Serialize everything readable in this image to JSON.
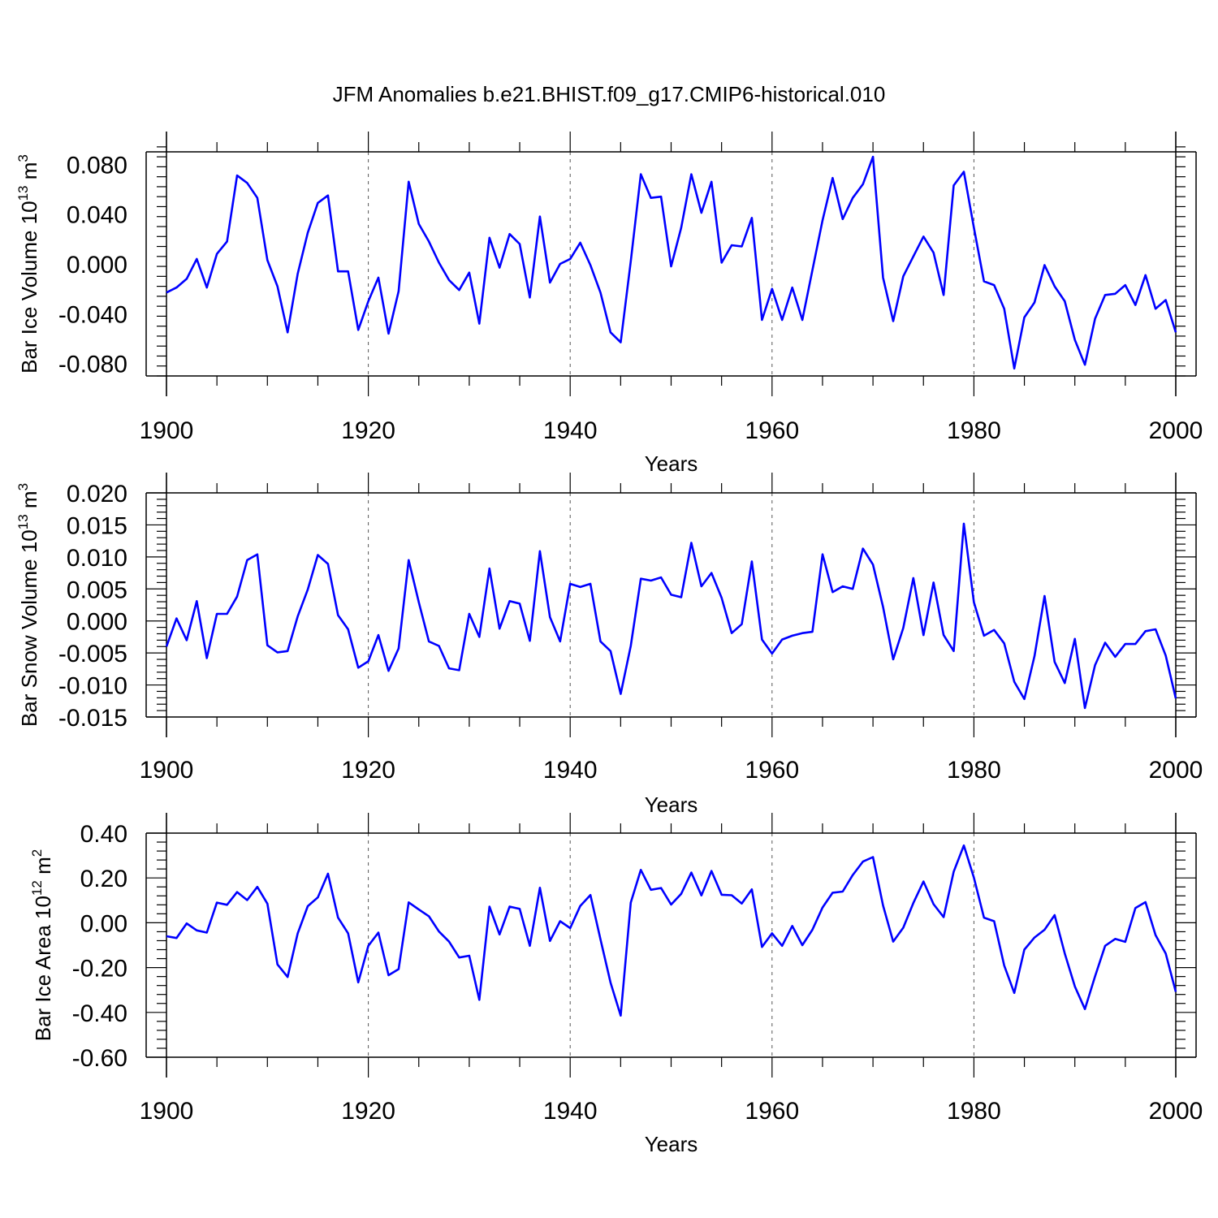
{
  "title": "JFM Anomalies b.e21.BHIST.f09_g17.CMIP6-historical.010",
  "colors": {
    "line": "#0000ff",
    "axis": "#000000",
    "grid": "#555555"
  },
  "chart_data": [
    {
      "type": "line",
      "ylabel_main": "Bar Ice Volume 10",
      "ylabel_exp": "13",
      "ylabel_unit": "m",
      "ylabel_unit_exp": "3",
      "xlabel": "Years",
      "xlim": [
        1900,
        2000
      ],
      "ylim": [
        -0.09,
        0.09
      ],
      "yticks": [
        -0.08,
        -0.04,
        0.0,
        0.04,
        0.08
      ],
      "ytick_labels": [
        "-0.080",
        "-0.040",
        "0.000",
        "0.040",
        "0.080"
      ],
      "y_minor_step": 0.008,
      "xticks": [
        1900,
        1920,
        1940,
        1960,
        1980,
        2000
      ],
      "xtick_labels": [
        "1900",
        "1920",
        "1940",
        "1960",
        "1980",
        "2000"
      ],
      "x_minor_step": 5,
      "grid_x": [
        1920,
        1940,
        1960,
        1980
      ],
      "x_start": 1900,
      "values": [
        -0.023,
        -0.019,
        -0.012,
        0.004,
        -0.019,
        0.008,
        0.018,
        0.071,
        0.065,
        0.053,
        0.003,
        -0.018,
        -0.055,
        -0.008,
        0.025,
        0.049,
        0.055,
        -0.006,
        -0.006,
        -0.053,
        -0.03,
        -0.011,
        -0.056,
        -0.022,
        0.066,
        0.032,
        0.018,
        0.001,
        -0.013,
        -0.021,
        -0.007,
        -0.048,
        0.021,
        -0.003,
        0.024,
        0.016,
        -0.027,
        0.038,
        -0.015,
        0.0,
        0.004,
        0.017,
        -0.001,
        -0.023,
        -0.055,
        -0.063,
        0.002,
        0.072,
        0.053,
        0.054,
        -0.002,
        0.029,
        0.072,
        0.041,
        0.066,
        0.001,
        0.015,
        0.014,
        0.037,
        -0.045,
        -0.02,
        -0.045,
        -0.019,
        -0.045,
        -0.005,
        0.035,
        0.069,
        0.036,
        0.053,
        0.064,
        0.086,
        -0.011,
        -0.046,
        -0.01,
        0.006,
        0.022,
        0.009,
        -0.025,
        0.063,
        0.074,
        0.029,
        -0.014,
        -0.017,
        -0.036,
        -0.084,
        -0.043,
        -0.031,
        -0.001,
        -0.018,
        -0.03,
        -0.061,
        -0.081,
        -0.044,
        -0.025,
        -0.024,
        -0.017,
        -0.033,
        -0.009,
        -0.036,
        -0.029,
        -0.055
      ]
    },
    {
      "type": "line",
      "ylabel_main": "Bar Snow Volume 10",
      "ylabel_exp": "13",
      "ylabel_unit": "m",
      "ylabel_unit_exp": "3",
      "xlabel": "Years",
      "xlim": [
        1900,
        2000
      ],
      "ylim": [
        -0.015,
        0.02
      ],
      "yticks": [
        -0.015,
        -0.01,
        -0.005,
        0.0,
        0.005,
        0.01,
        0.015,
        0.02
      ],
      "ytick_labels": [
        "-0.015",
        "-0.010",
        "-0.005",
        "0.000",
        "0.005",
        "0.010",
        "0.015",
        "0.020"
      ],
      "y_minor_step": 0.001,
      "xticks": [
        1900,
        1920,
        1940,
        1960,
        1980,
        2000
      ],
      "xtick_labels": [
        "1900",
        "1920",
        "1940",
        "1960",
        "1980",
        "2000"
      ],
      "x_minor_step": 5,
      "grid_x": [
        1920,
        1940,
        1960,
        1980
      ],
      "x_start": 1900,
      "values": [
        -0.004,
        0.0004,
        -0.003,
        0.0031,
        -0.0058,
        0.0011,
        0.0011,
        0.0038,
        0.0095,
        0.0104,
        -0.0038,
        -0.0049,
        -0.0047,
        0.0007,
        0.0049,
        0.0103,
        0.0089,
        0.0009,
        -0.0013,
        -0.0073,
        -0.0063,
        -0.0022,
        -0.0078,
        -0.0043,
        0.0095,
        0.0029,
        -0.0032,
        -0.0039,
        -0.0074,
        -0.0077,
        0.0011,
        -0.0025,
        0.0082,
        -0.0012,
        0.0031,
        0.0027,
        -0.0031,
        0.0109,
        0.0006,
        -0.0032,
        0.0058,
        0.0053,
        0.0058,
        -0.0032,
        -0.0047,
        -0.0114,
        -0.0039,
        0.0066,
        0.0063,
        0.0068,
        0.0041,
        0.0037,
        0.0122,
        0.0054,
        0.0075,
        0.0036,
        -0.0019,
        -0.0005,
        0.0093,
        -0.0029,
        -0.0051,
        -0.0029,
        -0.0023,
        -0.0019,
        -0.0017,
        0.0104,
        0.0045,
        0.0054,
        0.005,
        0.0113,
        0.0088,
        0.0022,
        -0.006,
        -0.0011,
        0.0067,
        -0.0022,
        0.006,
        -0.0022,
        -0.0047,
        0.0152,
        0.0029,
        -0.0023,
        -0.0014,
        -0.0035,
        -0.0095,
        -0.0122,
        -0.0055,
        0.0039,
        -0.0064,
        -0.0097,
        -0.0028,
        -0.0136,
        -0.0069,
        -0.0034,
        -0.0056,
        -0.0036,
        -0.0036,
        -0.0016,
        -0.0013,
        -0.0054,
        -0.0121
      ]
    },
    {
      "type": "line",
      "ylabel_main": "Bar Ice Area 10",
      "ylabel_exp": "12",
      "ylabel_unit": "m",
      "ylabel_unit_exp": "2",
      "xlabel": "Years",
      "xlim": [
        1900,
        2000
      ],
      "ylim": [
        -0.6,
        0.4
      ],
      "yticks": [
        -0.6,
        -0.4,
        -0.2,
        0.0,
        0.2,
        0.4
      ],
      "ytick_labels": [
        "-0.60",
        "-0.40",
        "-0.20",
        "0.00",
        "0.20",
        "0.40"
      ],
      "y_minor_step": 0.04,
      "xticks": [
        1900,
        1920,
        1940,
        1960,
        1980,
        2000
      ],
      "xtick_labels": [
        "1900",
        "1920",
        "1940",
        "1960",
        "1980",
        "2000"
      ],
      "x_minor_step": 5,
      "grid_x": [
        1920,
        1940,
        1960,
        1980
      ],
      "x_start": 1900,
      "values": [
        -0.06,
        -0.068,
        -0.003,
        -0.034,
        -0.044,
        0.09,
        0.08,
        0.137,
        0.101,
        0.16,
        0.085,
        -0.186,
        -0.242,
        -0.048,
        0.074,
        0.113,
        0.219,
        0.023,
        -0.047,
        -0.266,
        -0.103,
        -0.044,
        -0.234,
        -0.207,
        0.091,
        0.059,
        0.029,
        -0.039,
        -0.084,
        -0.155,
        -0.147,
        -0.344,
        0.072,
        -0.052,
        0.072,
        0.062,
        -0.103,
        0.156,
        -0.081,
        0.007,
        -0.024,
        0.075,
        0.124,
        -0.074,
        -0.267,
        -0.414,
        0.09,
        0.236,
        0.147,
        0.155,
        0.081,
        0.129,
        0.224,
        0.122,
        0.231,
        0.125,
        0.123,
        0.086,
        0.149,
        -0.108,
        -0.047,
        -0.103,
        -0.014,
        -0.1,
        -0.031,
        0.068,
        0.134,
        0.139,
        0.213,
        0.273,
        0.293,
        0.077,
        -0.084,
        -0.022,
        0.088,
        0.184,
        0.083,
        0.025,
        0.228,
        0.345,
        0.201,
        0.023,
        0.007,
        -0.191,
        -0.313,
        -0.12,
        -0.066,
        -0.031,
        0.034,
        -0.137,
        -0.284,
        -0.385,
        -0.239,
        -0.103,
        -0.072,
        -0.085,
        0.066,
        0.092,
        -0.055,
        -0.137,
        -0.308
      ]
    }
  ]
}
